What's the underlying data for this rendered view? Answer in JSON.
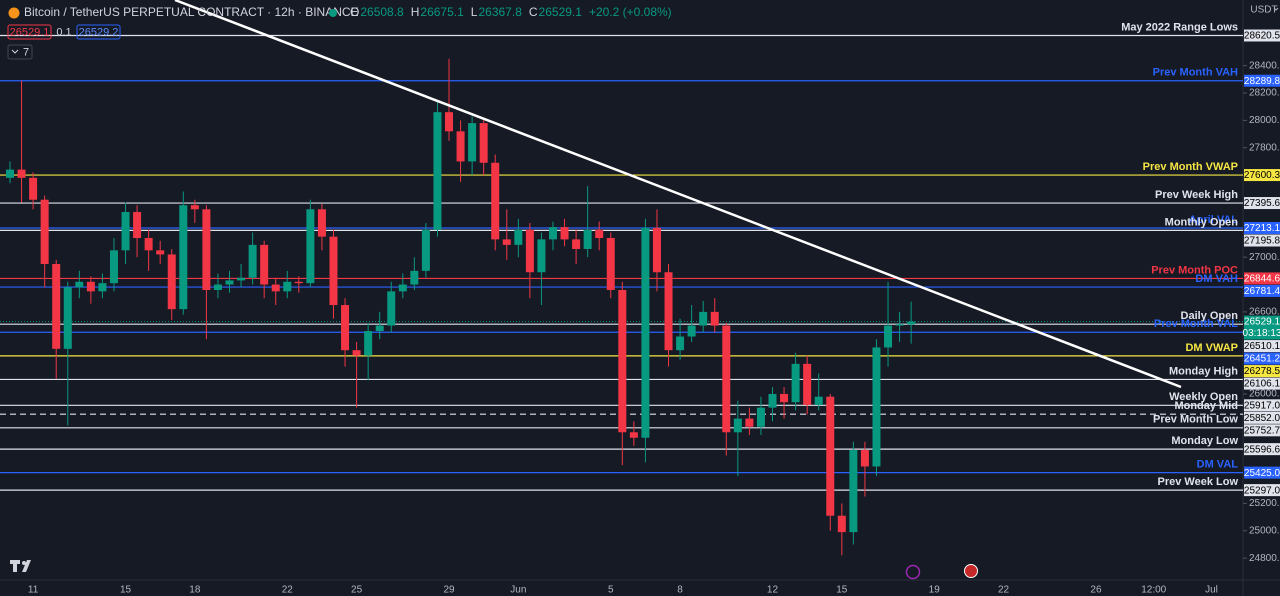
{
  "chart_data": {
    "type": "candlestick",
    "header": {
      "title": "Bitcoin / TetherUS PERPETUAL CONTRACT · 12h · BINANCE",
      "ohlc": [
        {
          "label": "O",
          "value": 26508.8
        },
        {
          "label": "H",
          "value": 26675.1
        },
        {
          "label": "L",
          "value": 26367.8
        },
        {
          "label": "C",
          "value": 26529.1
        }
      ],
      "change": "+20.2 (+0.08%)",
      "bid": 26529.1,
      "spread": 0.1,
      "ask": 26529.2,
      "indicators": 7
    },
    "currency": "USDT",
    "up_color": "#089981",
    "down_color": "#f23645",
    "categories": [
      null,
      null,
      "11",
      null,
      null,
      null,
      null,
      null,
      null,
      null,
      "15",
      null,
      null,
      null,
      null,
      null,
      "18",
      null,
      null,
      null,
      null,
      null,
      null,
      null,
      "22",
      null,
      null,
      null,
      null,
      null,
      "25",
      null,
      null,
      null,
      null,
      null,
      null,
      null,
      "29",
      null,
      null,
      null,
      null,
      null,
      "Jun",
      null,
      null,
      null,
      null,
      null,
      null,
      null,
      "5",
      null,
      null,
      null,
      null,
      null,
      "8",
      null,
      null,
      null,
      null,
      null,
      null,
      null,
      "12",
      null,
      null,
      null,
      null,
      null,
      "15",
      null,
      null,
      null,
      null,
      null,
      null,
      null,
      "19",
      null,
      null,
      null,
      null,
      null,
      "22",
      null,
      null,
      null,
      null,
      null,
      null,
      null,
      "26",
      null,
      null,
      null,
      null,
      "12:00",
      null,
      null,
      null,
      null,
      "Jul",
      null,
      null
    ],
    "open": [
      27580,
      27640,
      27580,
      27420,
      26950,
      26330,
      26780,
      26820,
      26750,
      26810,
      27050,
      27330,
      27140,
      27050,
      27020,
      26620,
      27380,
      27350,
      26760,
      26800,
      26830,
      26850,
      27090,
      26800,
      26750,
      26820,
      26810,
      27350,
      27150,
      26650,
      26320,
      26280,
      26460,
      26500,
      26750,
      26800,
      26900,
      27200,
      28060,
      27920,
      27700,
      27980,
      27690,
      27130,
      27090,
      27200,
      26890,
      27130,
      27220,
      27130,
      27060,
      27200,
      27140,
      26760,
      25720,
      25680,
      27215,
      26890,
      26320,
      26420,
      26500,
      26600,
      26500,
      25720,
      25820,
      25760,
      25900,
      26000,
      25940,
      26220,
      25920,
      25980,
      25110,
      24990,
      25590,
      25470,
      26340,
      26500,
      26508.8,
      null,
      null,
      null,
      null,
      null,
      null,
      null,
      null,
      null,
      null,
      null,
      null,
      null,
      null,
      null,
      null,
      null,
      null,
      null,
      null,
      null,
      null,
      null,
      null,
      null,
      null,
      null,
      null
    ],
    "high": [
      27700,
      28290,
      27620,
      27450,
      26980,
      26820,
      26900,
      26860,
      26880,
      27140,
      27400,
      27380,
      27200,
      27120,
      27060,
      27480,
      27420,
      27380,
      26880,
      26900,
      26950,
      27180,
      27120,
      26850,
      26900,
      26860,
      27420,
      27390,
      27200,
      26700,
      26380,
      26520,
      26600,
      26820,
      26880,
      27000,
      27250,
      28150,
      28450,
      28000,
      28030,
      28020,
      27750,
      27350,
      27280,
      27250,
      27180,
      27260,
      27280,
      27200,
      27520,
      27260,
      27180,
      26820,
      25800,
      27280,
      27350,
      26950,
      26550,
      26650,
      26680,
      26700,
      26520,
      25950,
      25900,
      25980,
      26050,
      26050,
      26300,
      26280,
      26150,
      26000,
      25200,
      25650,
      25650,
      26400,
      26820,
      26600,
      26675.1,
      null,
      null,
      null,
      null,
      null,
      null,
      null,
      null,
      null,
      null,
      null,
      null,
      null,
      null,
      null,
      null,
      null,
      null,
      null,
      null,
      null,
      null,
      null,
      null,
      null,
      null,
      null,
      null
    ],
    "low": [
      27540,
      27400,
      27350,
      26780,
      26110,
      25770,
      26700,
      26660,
      26700,
      26750,
      26950,
      27000,
      26900,
      26950,
      26540,
      26580,
      27250,
      26400,
      26700,
      26740,
      26780,
      26800,
      26700,
      26650,
      26700,
      26740,
      26780,
      27050,
      26550,
      26200,
      25900,
      26100,
      26400,
      26450,
      26700,
      26760,
      26850,
      27150,
      27850,
      27550,
      27600,
      27600,
      27050,
      26980,
      27000,
      26700,
      26650,
      27050,
      27080,
      26950,
      27000,
      27050,
      26700,
      25480,
      25620,
      25500,
      26750,
      26200,
      26250,
      26380,
      26450,
      26450,
      25550,
      25400,
      25700,
      25700,
      25800,
      25820,
      25880,
      25850,
      25880,
      25000,
      24820,
      24900,
      25250,
      25400,
      26200,
      26380,
      26367.8,
      null,
      null,
      null,
      null,
      null,
      null,
      null,
      null,
      null,
      null,
      null,
      null,
      null,
      null,
      null,
      null,
      null,
      null,
      null,
      null,
      null,
      null,
      null,
      null,
      null,
      null,
      null,
      null
    ],
    "close": [
      27640,
      27580,
      27420,
      26950,
      26330,
      26780,
      26820,
      26750,
      26810,
      27050,
      27330,
      27140,
      27050,
      27020,
      26620,
      27380,
      27350,
      26760,
      26800,
      26830,
      26850,
      27090,
      26800,
      26750,
      26820,
      26810,
      27350,
      27150,
      26650,
      26320,
      26280,
      26460,
      26500,
      26750,
      26800,
      26900,
      27200,
      28060,
      27920,
      27700,
      27980,
      27690,
      27130,
      27090,
      27200,
      26890,
      27130,
      27220,
      27130,
      27060,
      27200,
      27140,
      26760,
      25720,
      25680,
      27215,
      26890,
      26320,
      26420,
      26500,
      26600,
      26500,
      25720,
      25820,
      25760,
      25900,
      26000,
      25940,
      26220,
      25920,
      25980,
      25110,
      24990,
      25590,
      25470,
      26340,
      26500,
      26510,
      26529.1,
      null,
      null,
      null,
      null,
      null,
      null,
      null,
      null,
      null,
      null,
      null,
      null,
      null,
      null,
      null,
      null,
      null,
      null,
      null,
      null,
      null,
      null,
      null,
      null,
      null,
      null,
      null,
      null
    ],
    "ylim": [
      24640,
      28880
    ],
    "yticks": [
      {
        "value": 28400,
        "label": "28400.0"
      },
      {
        "value": 28200,
        "label": "28200.0"
      },
      {
        "value": 28000,
        "label": "28000.0"
      },
      {
        "value": 27800,
        "label": "27800.0"
      },
      {
        "value": 27000,
        "label": "27000.0"
      },
      {
        "value": 26600,
        "label": "26600.0"
      },
      {
        "value": 26000,
        "label": "26000.0"
      },
      {
        "value": 25200,
        "label": "25200.0"
      },
      {
        "value": 25000,
        "label": "25000.0"
      },
      {
        "value": 24800,
        "label": "24800.0"
      }
    ],
    "levels": [
      {
        "name": "May 2022 Range Lows",
        "value": 28620.5,
        "value_label": "28620.5",
        "color": "#e0e3eb",
        "text_color": "#000000",
        "dashed": false
      },
      {
        "name": "Prev Month VAH",
        "value": 28289.8,
        "value_label": "28289.8",
        "color": "#2962ff",
        "text_color": "#ffffff",
        "dashed": false
      },
      {
        "name": "Prev Month VWAP",
        "value": 27600.3,
        "value_label": "27600.3",
        "color": "#f5e642",
        "text_color": "#000000",
        "dashed": false
      },
      {
        "name": "Prev Week High",
        "value": 27395.6,
        "value_label": "27395.6",
        "color": "#e0e3eb",
        "text_color": "#000000",
        "dashed": false
      },
      {
        "name": "April VAL",
        "value": 27213.1,
        "value_label": "27213.1",
        "color": "#2962ff",
        "text_color": "#ffffff",
        "dashed": false
      },
      {
        "name": "Monthly Open",
        "value": 27195.8,
        "value_label": "27195.8",
        "color": "#e0e3eb",
        "text_color": "#000000",
        "dashed": false
      },
      {
        "name": "Prev Month POC",
        "value": 26844.6,
        "value_label": "26844.6",
        "color": "#f23645",
        "text_color": "#ffffff",
        "dashed": false
      },
      {
        "name": "DM VAH",
        "value": 26781.4,
        "value_label": "26781.4",
        "color": "#2962ff",
        "text_color": "#ffffff",
        "dashed": false
      },
      {
        "name": "Daily Open",
        "value": 26510.1,
        "value_label": "26510.1",
        "color": "#e0e3eb",
        "text_color": "#000000",
        "dashed": false
      },
      {
        "name": "Prev Month VAL",
        "value": 26451.2,
        "value_label": "26451.2",
        "color": "#2962ff",
        "text_color": "#ffffff",
        "dashed": false
      },
      {
        "name": "DM VWAP",
        "value": 26278.5,
        "value_label": "26278.5",
        "color": "#f5e642",
        "text_color": "#000000",
        "dashed": false
      },
      {
        "name": "Monday High",
        "value": 26106.1,
        "value_label": "26106.1",
        "color": "#e0e3eb",
        "text_color": "#000000",
        "dashed": false
      },
      {
        "name": "Weekly Open",
        "value": 25917,
        "value_label": "25917.0",
        "color": "#e0e3eb",
        "text_color": "#000000",
        "dashed": false
      },
      {
        "name": "Monday Mid",
        "value": 25852,
        "value_label": "25852.0",
        "color": "#e0e3eb",
        "text_color": "#000000",
        "dashed": true
      },
      {
        "name": "Prev Month Low",
        "value": 25752.7,
        "value_label": "25752.7",
        "color": "#e0e3eb",
        "text_color": "#000000",
        "dashed": false
      },
      {
        "name": "Monday Low",
        "value": 25596.6,
        "value_label": "25596.6",
        "color": "#e0e3eb",
        "text_color": "#000000",
        "dashed": false
      },
      {
        "name": "DM VAL",
        "value": 25425,
        "value_label": "25425.0",
        "color": "#2962ff",
        "text_color": "#ffffff",
        "dashed": false
      },
      {
        "name": "Prev Week Low",
        "value": 25297,
        "value_label": "25297.0",
        "color": "#e0e3eb",
        "text_color": "#000000",
        "dashed": false
      }
    ],
    "current_price": {
      "value": 26529.1,
      "countdown": "03:18:13"
    }
  }
}
